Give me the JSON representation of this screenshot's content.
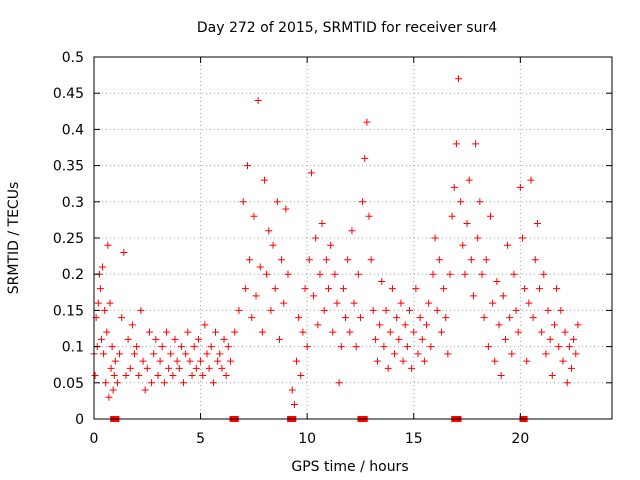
{
  "chart_data": {
    "type": "scatter",
    "title": "Day 272 of 2015, SRMTID for receiver sur4",
    "xlabel": "GPS time / hours",
    "ylabel": "SRMTID / TECUs",
    "xlim": [
      0,
      24.3
    ],
    "ylim": [
      0,
      0.5
    ],
    "xticks": [
      0,
      5,
      10,
      15,
      20
    ],
    "xtick_labels": [
      "0",
      "5",
      "10",
      "15",
      "20"
    ],
    "yticks": [
      0,
      0.05,
      0.1,
      0.15,
      0.2,
      0.25,
      0.3,
      0.35,
      0.4,
      0.45,
      0.5
    ],
    "ytick_labels": [
      "0",
      "0.05",
      "0.1",
      "0.15",
      "0.2",
      "0.25",
      "0.3",
      "0.35",
      "0.4",
      "0.45",
      "0.5"
    ],
    "grid": true,
    "marker": "+",
    "color": "#ff0000",
    "gap_marker_color": "#ff0000",
    "gap_markers_x": [
      0.9,
      1.05,
      6.5,
      6.65,
      9.2,
      9.35,
      12.5,
      12.7,
      16.9,
      17.1,
      20.1,
      20.2
    ],
    "series": [
      {
        "name": "SRMTID",
        "points": [
          [
            0.0,
            0.09
          ],
          [
            0.05,
            0.06
          ],
          [
            0.1,
            0.14
          ],
          [
            0.15,
            0.1
          ],
          [
            0.2,
            0.16
          ],
          [
            0.25,
            0.2
          ],
          [
            0.3,
            0.18
          ],
          [
            0.35,
            0.11
          ],
          [
            0.4,
            0.21
          ],
          [
            0.45,
            0.09
          ],
          [
            0.5,
            0.15
          ],
          [
            0.55,
            0.05
          ],
          [
            0.6,
            0.12
          ],
          [
            0.65,
            0.24
          ],
          [
            0.7,
            0.03
          ],
          [
            0.75,
            0.16
          ],
          [
            0.8,
            0.07
          ],
          [
            0.85,
            0.1
          ],
          [
            0.9,
            0.04
          ],
          [
            0.95,
            0.06
          ],
          [
            1.0,
            0.08
          ],
          [
            1.1,
            0.05
          ],
          [
            1.2,
            0.09
          ],
          [
            1.3,
            0.14
          ],
          [
            1.4,
            0.23
          ],
          [
            1.5,
            0.06
          ],
          [
            1.6,
            0.11
          ],
          [
            1.7,
            0.07
          ],
          [
            1.8,
            0.13
          ],
          [
            1.9,
            0.09
          ],
          [
            2.0,
            0.1
          ],
          [
            2.1,
            0.06
          ],
          [
            2.2,
            0.15
          ],
          [
            2.3,
            0.08
          ],
          [
            2.4,
            0.04
          ],
          [
            2.5,
            0.07
          ],
          [
            2.6,
            0.12
          ],
          [
            2.7,
            0.05
          ],
          [
            2.8,
            0.09
          ],
          [
            2.9,
            0.11
          ],
          [
            3.0,
            0.06
          ],
          [
            3.1,
            0.08
          ],
          [
            3.2,
            0.1
          ],
          [
            3.3,
            0.05
          ],
          [
            3.4,
            0.12
          ],
          [
            3.5,
            0.07
          ],
          [
            3.6,
            0.09
          ],
          [
            3.7,
            0.06
          ],
          [
            3.8,
            0.11
          ],
          [
            3.9,
            0.08
          ],
          [
            4.0,
            0.07
          ],
          [
            4.1,
            0.1
          ],
          [
            4.2,
            0.05
          ],
          [
            4.3,
            0.09
          ],
          [
            4.4,
            0.12
          ],
          [
            4.5,
            0.08
          ],
          [
            4.6,
            0.06
          ],
          [
            4.7,
            0.1
          ],
          [
            4.8,
            0.07
          ],
          [
            4.9,
            0.11
          ],
          [
            5.0,
            0.08
          ],
          [
            5.1,
            0.06
          ],
          [
            5.2,
            0.13
          ],
          [
            5.3,
            0.09
          ],
          [
            5.4,
            0.07
          ],
          [
            5.5,
            0.1
          ],
          [
            5.6,
            0.05
          ],
          [
            5.7,
            0.12
          ],
          [
            5.8,
            0.08
          ],
          [
            5.9,
            0.09
          ],
          [
            6.0,
            0.07
          ],
          [
            6.1,
            0.11
          ],
          [
            6.2,
            0.06
          ],
          [
            6.3,
            0.1
          ],
          [
            6.4,
            0.08
          ],
          [
            6.6,
            0.12
          ],
          [
            6.8,
            0.15
          ],
          [
            7.0,
            0.3
          ],
          [
            7.1,
            0.18
          ],
          [
            7.2,
            0.35
          ],
          [
            7.3,
            0.22
          ],
          [
            7.4,
            0.14
          ],
          [
            7.5,
            0.28
          ],
          [
            7.6,
            0.17
          ],
          [
            7.7,
            0.44
          ],
          [
            7.8,
            0.21
          ],
          [
            7.9,
            0.12
          ],
          [
            8.0,
            0.33
          ],
          [
            8.1,
            0.2
          ],
          [
            8.2,
            0.26
          ],
          [
            8.3,
            0.15
          ],
          [
            8.4,
            0.24
          ],
          [
            8.5,
            0.18
          ],
          [
            8.6,
            0.3
          ],
          [
            8.7,
            0.11
          ],
          [
            8.8,
            0.22
          ],
          [
            8.9,
            0.16
          ],
          [
            9.0,
            0.29
          ],
          [
            9.1,
            0.2
          ],
          [
            9.3,
            0.04
          ],
          [
            9.4,
            0.02
          ],
          [
            9.5,
            0.08
          ],
          [
            9.6,
            0.14
          ],
          [
            9.7,
            0.06
          ],
          [
            9.8,
            0.12
          ],
          [
            9.9,
            0.18
          ],
          [
            10.0,
            0.1
          ],
          [
            10.1,
            0.22
          ],
          [
            10.2,
            0.34
          ],
          [
            10.3,
            0.17
          ],
          [
            10.4,
            0.25
          ],
          [
            10.5,
            0.13
          ],
          [
            10.6,
            0.2
          ],
          [
            10.7,
            0.27
          ],
          [
            10.8,
            0.15
          ],
          [
            10.9,
            0.22
          ],
          [
            11.0,
            0.18
          ],
          [
            11.1,
            0.24
          ],
          [
            11.2,
            0.12
          ],
          [
            11.3,
            0.2
          ],
          [
            11.4,
            0.16
          ],
          [
            11.5,
            0.05
          ],
          [
            11.6,
            0.1
          ],
          [
            11.7,
            0.18
          ],
          [
            11.8,
            0.14
          ],
          [
            11.9,
            0.22
          ],
          [
            12.0,
            0.12
          ],
          [
            12.1,
            0.26
          ],
          [
            12.2,
            0.16
          ],
          [
            12.3,
            0.1
          ],
          [
            12.4,
            0.2
          ],
          [
            12.5,
            0.14
          ],
          [
            12.6,
            0.3
          ],
          [
            12.7,
            0.36
          ],
          [
            12.8,
            0.41
          ],
          [
            12.9,
            0.28
          ],
          [
            13.0,
            0.22
          ],
          [
            13.1,
            0.15
          ],
          [
            13.2,
            0.11
          ],
          [
            13.3,
            0.08
          ],
          [
            13.4,
            0.13
          ],
          [
            13.5,
            0.19
          ],
          [
            13.6,
            0.1
          ],
          [
            13.7,
            0.15
          ],
          [
            13.8,
            0.07
          ],
          [
            13.9,
            0.12
          ],
          [
            14.0,
            0.18
          ],
          [
            14.1,
            0.09
          ],
          [
            14.2,
            0.14
          ],
          [
            14.3,
            0.11
          ],
          [
            14.4,
            0.16
          ],
          [
            14.5,
            0.08
          ],
          [
            14.6,
            0.13
          ],
          [
            14.7,
            0.1
          ],
          [
            14.8,
            0.15
          ],
          [
            14.9,
            0.07
          ],
          [
            15.0,
            0.12
          ],
          [
            15.1,
            0.18
          ],
          [
            15.2,
            0.09
          ],
          [
            15.3,
            0.14
          ],
          [
            15.4,
            0.11
          ],
          [
            15.5,
            0.08
          ],
          [
            15.6,
            0.13
          ],
          [
            15.7,
            0.16
          ],
          [
            15.8,
            0.1
          ],
          [
            15.9,
            0.2
          ],
          [
            16.0,
            0.25
          ],
          [
            16.1,
            0.15
          ],
          [
            16.2,
            0.22
          ],
          [
            16.3,
            0.12
          ],
          [
            16.4,
            0.18
          ],
          [
            16.5,
            0.14
          ],
          [
            16.6,
            0.09
          ],
          [
            16.7,
            0.2
          ],
          [
            16.8,
            0.28
          ],
          [
            16.9,
            0.32
          ],
          [
            17.0,
            0.38
          ],
          [
            17.1,
            0.47
          ],
          [
            17.2,
            0.3
          ],
          [
            17.3,
            0.24
          ],
          [
            17.4,
            0.2
          ],
          [
            17.5,
            0.27
          ],
          [
            17.6,
            0.33
          ],
          [
            17.7,
            0.22
          ],
          [
            17.8,
            0.17
          ],
          [
            17.9,
            0.38
          ],
          [
            18.0,
            0.25
          ],
          [
            18.1,
            0.3
          ],
          [
            18.2,
            0.2
          ],
          [
            18.3,
            0.14
          ],
          [
            18.4,
            0.22
          ],
          [
            18.5,
            0.1
          ],
          [
            18.6,
            0.28
          ],
          [
            18.7,
            0.16
          ],
          [
            18.8,
            0.08
          ],
          [
            18.9,
            0.19
          ],
          [
            19.0,
            0.13
          ],
          [
            19.1,
            0.06
          ],
          [
            19.2,
            0.17
          ],
          [
            19.3,
            0.11
          ],
          [
            19.4,
            0.24
          ],
          [
            19.5,
            0.14
          ],
          [
            19.6,
            0.09
          ],
          [
            19.7,
            0.2
          ],
          [
            19.8,
            0.15
          ],
          [
            19.9,
            0.12
          ],
          [
            20.0,
            0.32
          ],
          [
            20.1,
            0.25
          ],
          [
            20.2,
            0.18
          ],
          [
            20.3,
            0.08
          ],
          [
            20.4,
            0.16
          ],
          [
            20.5,
            0.33
          ],
          [
            20.6,
            0.14
          ],
          [
            20.7,
            0.22
          ],
          [
            20.8,
            0.27
          ],
          [
            20.9,
            0.18
          ],
          [
            21.0,
            0.12
          ],
          [
            21.1,
            0.2
          ],
          [
            21.2,
            0.09
          ],
          [
            21.3,
            0.15
          ],
          [
            21.4,
            0.11
          ],
          [
            21.5,
            0.06
          ],
          [
            21.6,
            0.13
          ],
          [
            21.7,
            0.18
          ],
          [
            21.8,
            0.1
          ],
          [
            21.9,
            0.15
          ],
          [
            22.0,
            0.08
          ],
          [
            22.1,
            0.12
          ],
          [
            22.2,
            0.05
          ],
          [
            22.3,
            0.1
          ],
          [
            22.4,
            0.07
          ],
          [
            22.5,
            0.11
          ],
          [
            22.6,
            0.09
          ],
          [
            22.7,
            0.13
          ]
        ]
      }
    ]
  }
}
